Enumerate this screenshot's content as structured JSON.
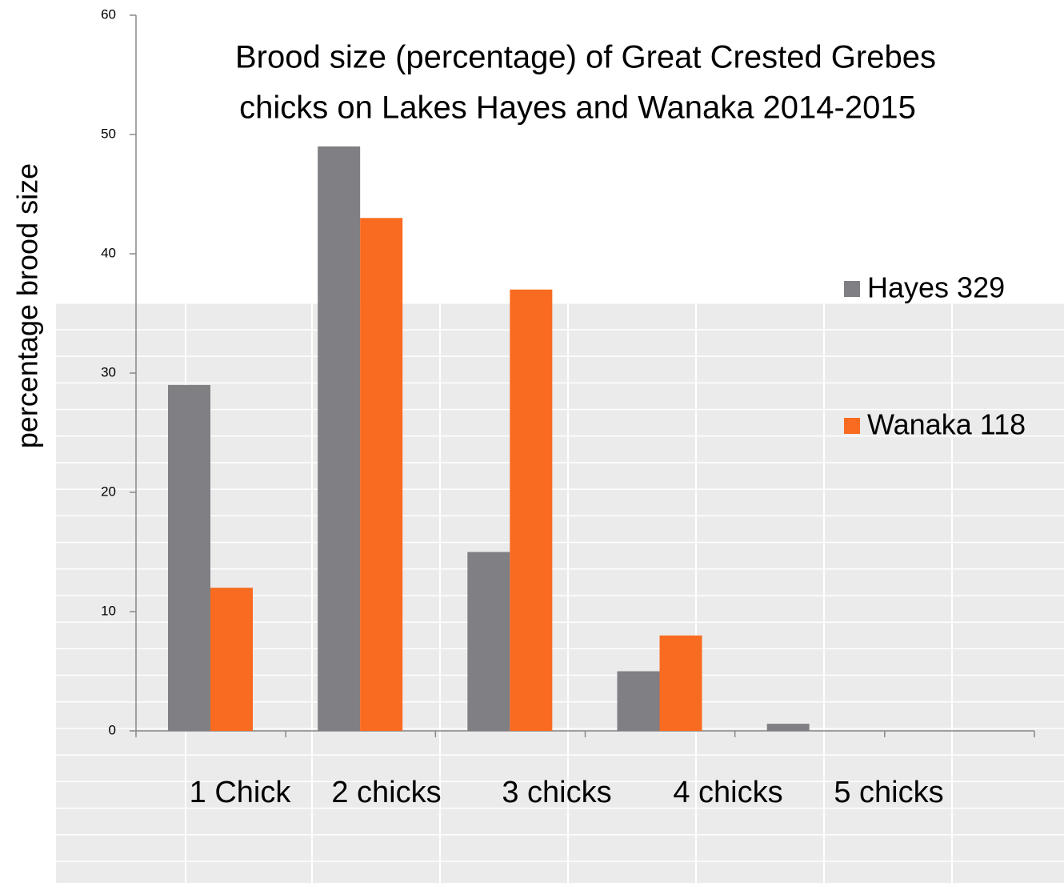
{
  "chart_data": {
    "type": "bar",
    "title": [
      "Brood size (percentage) of Great Crested Grebes",
      "chicks on Lakes Hayes and Wanaka 2014-2015"
    ],
    "y_label": "percentage brood size",
    "categories": [
      "1 Chick",
      "2 chicks",
      "3 chicks",
      "4 chicks",
      "5 chicks",
      null
    ],
    "series": [
      {
        "name": "Hayes 329",
        "color": "#7f7f84",
        "values": [
          29,
          49,
          15,
          5,
          0.6,
          null
        ]
      },
      {
        "name": "Wanaka 118",
        "color": "#f96b20",
        "values": [
          12,
          43,
          37,
          8,
          0,
          null
        ]
      }
    ],
    "ylim": [
      0,
      60
    ],
    "yticks": [
      0,
      10,
      20,
      30,
      40,
      50,
      60
    ],
    "legend": "right"
  }
}
